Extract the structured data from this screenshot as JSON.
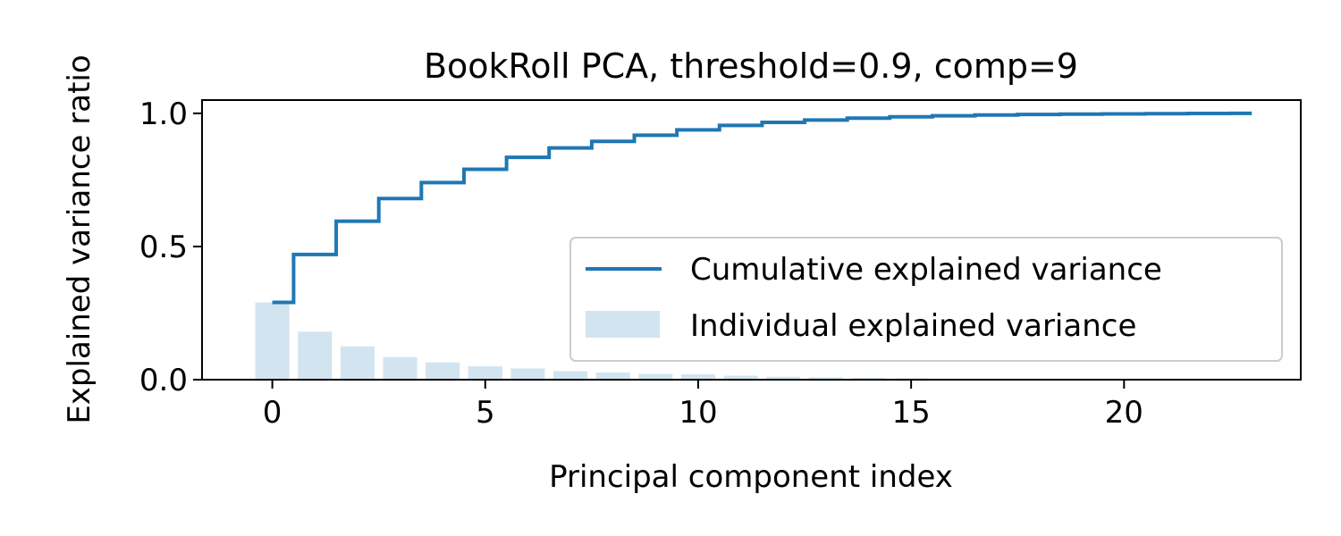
{
  "chart_data": {
    "type": "bar",
    "title": "BookRoll PCA, threshold=0.9, comp=9",
    "xlabel": "Principal component index",
    "ylabel": "Explained variance ratio",
    "xlim": [
      -1.65,
      24.15
    ],
    "ylim": [
      0.0,
      1.05
    ],
    "xticks": [
      0,
      5,
      10,
      15,
      20
    ],
    "xtick_labels": [
      "0",
      "5",
      "10",
      "15",
      "20"
    ],
    "yticks": [
      0.0,
      0.5,
      1.0
    ],
    "ytick_labels": [
      "0.0",
      "0.5",
      "1.0"
    ],
    "grid": false,
    "legend_position": "center-right",
    "colors": {
      "line": "#1f77b4",
      "bars": "#1f77b4"
    },
    "series": [
      {
        "name": "Cumulative explained variance",
        "type": "step",
        "x": [
          0,
          1,
          2,
          3,
          4,
          5,
          6,
          7,
          8,
          9,
          10,
          11,
          12,
          13,
          14,
          15,
          16,
          17,
          18,
          19,
          20,
          21,
          22,
          23
        ],
        "values": [
          0.29,
          0.47,
          0.595,
          0.68,
          0.74,
          0.79,
          0.835,
          0.87,
          0.895,
          0.918,
          0.938,
          0.955,
          0.966,
          0.975,
          0.982,
          0.987,
          0.991,
          0.994,
          0.996,
          0.997,
          0.998,
          0.999,
          0.9995,
          1.0
        ]
      },
      {
        "name": "Individual explained variance",
        "type": "bar",
        "x": [
          0,
          1,
          2,
          3,
          4,
          5,
          6,
          7,
          8,
          9,
          10,
          11,
          12,
          13,
          14,
          15,
          16,
          17,
          18,
          19,
          20,
          21,
          22,
          23
        ],
        "values": [
          0.29,
          0.18,
          0.125,
          0.085,
          0.065,
          0.05,
          0.042,
          0.032,
          0.027,
          0.022,
          0.02,
          0.015,
          0.011,
          0.009,
          0.007,
          0.005,
          0.004,
          0.003,
          0.002,
          0.001,
          0.001,
          0.001,
          0.0005,
          0.0005
        ]
      }
    ]
  }
}
